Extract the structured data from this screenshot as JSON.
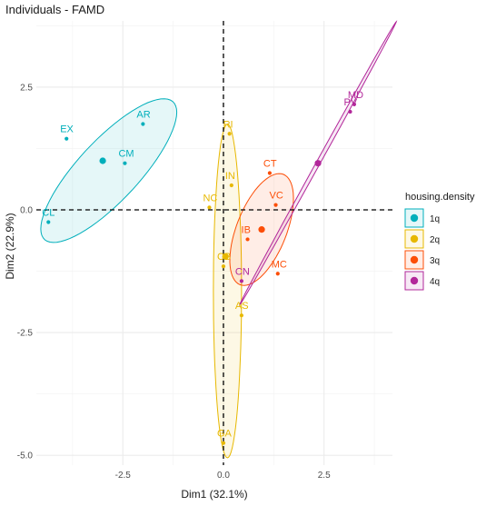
{
  "chart_data": {
    "type": "scatter",
    "title": "Individuals - FAMD",
    "xlabel": "Dim1 (32.1%)",
    "ylabel": "Dim2 (22.9%)",
    "xlim": [
      -4.65,
      4.2
    ],
    "ylim": [
      -5.2,
      3.85
    ],
    "x_ticks": [
      -2.5,
      0.0,
      2.5
    ],
    "y_ticks": [
      2.5,
      0.0,
      -2.5,
      -5.0
    ],
    "x_tick_labels": [
      "-2.5",
      "0.0",
      "2.5"
    ],
    "y_tick_labels": [
      "2.5",
      "0.0",
      "-2.5",
      "-5.0"
    ],
    "grid": true,
    "reference_lines": {
      "x": 0,
      "y": 0,
      "style": "dashed"
    },
    "legend": {
      "title": "housing.density",
      "position": "right"
    },
    "groups": [
      {
        "name": "1q",
        "color": "#00AFBB",
        "mean": [
          -3.0,
          1.0
        ],
        "ellipse": {
          "center": [
            -2.85,
            0.8
          ],
          "rx": 2.13,
          "ry": 0.68,
          "angle_deg": 40
        },
        "points": [
          {
            "label": "EX",
            "x": -3.9,
            "y": 1.45
          },
          {
            "label": "AR",
            "x": -2.0,
            "y": 1.75
          },
          {
            "label": "CM",
            "x": -2.45,
            "y": 0.95
          },
          {
            "label": "CL",
            "x": -4.35,
            "y": -0.25
          }
        ]
      },
      {
        "name": "2q",
        "color": "#E7B800",
        "mean": [
          0.05,
          -0.95
        ],
        "ellipse": {
          "center": [
            0.1,
            -1.65
          ],
          "rx": 0.35,
          "ry": 3.4,
          "angle_deg": 0
        },
        "points": [
          {
            "label": "RI",
            "x": 0.15,
            "y": 1.55
          },
          {
            "label": "IN",
            "x": 0.2,
            "y": 0.5
          },
          {
            "label": "NC",
            "x": -0.35,
            "y": 0.05
          },
          {
            "label": "CB",
            "x": 0.0,
            "y": -1.15
          },
          {
            "label": "AS",
            "x": 0.45,
            "y": -2.15
          },
          {
            "label": "GA",
            "x": 0.0,
            "y": -4.75
          }
        ]
      },
      {
        "name": "3q",
        "color": "#FC4E07",
        "mean": [
          0.95,
          -0.4
        ],
        "ellipse": {
          "center": [
            0.95,
            -0.4
          ],
          "rx": 1.25,
          "ry": 0.6,
          "angle_deg": 62
        },
        "points": [
          {
            "label": "CT",
            "x": 1.15,
            "y": 0.75
          },
          {
            "label": "VC",
            "x": 1.3,
            "y": 0.1
          },
          {
            "label": "IB",
            "x": 0.6,
            "y": -0.6
          },
          {
            "label": "MC",
            "x": 1.35,
            "y": -1.3
          }
        ]
      },
      {
        "name": "4q",
        "color": "#B2279A",
        "mean": [
          2.35,
          0.95
        ],
        "ellipse": {
          "center": [
            2.35,
            0.95
          ],
          "rx": 3.48,
          "ry": 0.045,
          "angle_deg": 56
        },
        "points": [
          {
            "label": "MD",
            "x": 3.25,
            "y": 2.15
          },
          {
            "label": "PV",
            "x": 3.15,
            "y": 2.0
          },
          {
            "label": "CN",
            "x": 0.45,
            "y": -1.45
          }
        ]
      }
    ]
  }
}
